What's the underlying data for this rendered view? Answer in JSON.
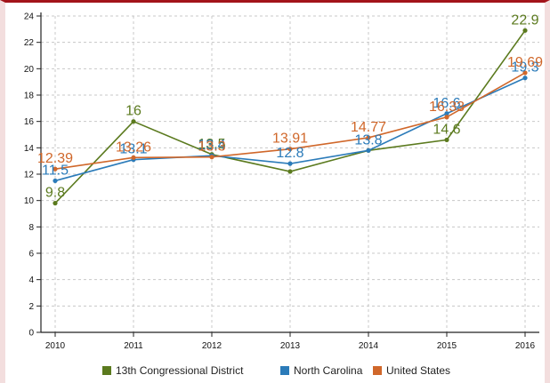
{
  "chart_data": {
    "type": "line",
    "x": [
      "2010",
      "2011",
      "2012",
      "2013",
      "2014",
      "2015",
      "2016"
    ],
    "ylim": [
      0,
      24
    ],
    "yticks": [
      0,
      2,
      4,
      6,
      8,
      10,
      12,
      14,
      16,
      18,
      20,
      22,
      24
    ],
    "grid": true,
    "legend_position": "bottom",
    "series": [
      {
        "name": "13th Congressional District",
        "color": "#5b7a1e",
        "values": [
          9.8,
          16,
          13.5,
          12.2,
          13.8,
          14.6,
          22.9
        ],
        "labels": [
          "9.8",
          "16",
          "13.5",
          "",
          "",
          "14.6",
          "22.9"
        ]
      },
      {
        "name": "North Carolina",
        "color": "#2b7bb9",
        "values": [
          11.5,
          13.1,
          13.4,
          12.8,
          13.8,
          16.6,
          19.3
        ],
        "labels": [
          "11.5",
          "13.1",
          "13.4",
          "12.8",
          "13.8",
          "16.6",
          "19.3"
        ]
      },
      {
        "name": "United States",
        "color": "#d0672a",
        "values": [
          12.39,
          13.26,
          13.3,
          13.91,
          14.77,
          16.33,
          19.69
        ],
        "labels": [
          "12.39",
          "13.26",
          "13.3",
          "13.91",
          "14.77",
          "16.33",
          "19.69"
        ]
      }
    ]
  }
}
